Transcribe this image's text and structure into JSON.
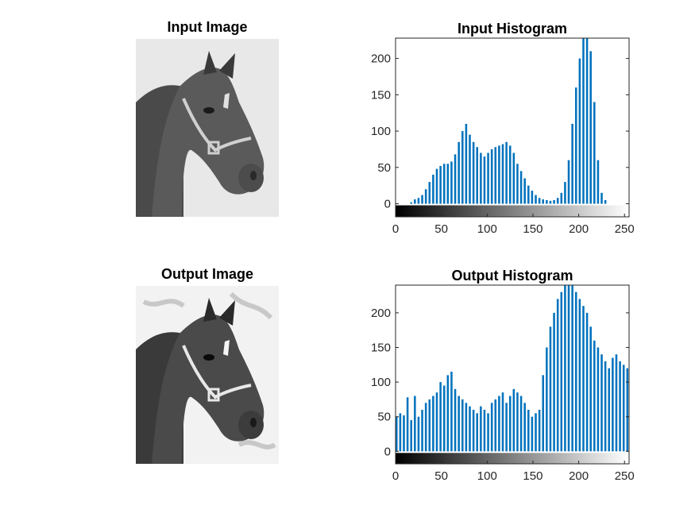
{
  "panels": {
    "input_image_title": "Input Image",
    "output_image_title": "Output Image",
    "input_hist_title": "Input Histogram",
    "output_hist_title": "Output Histogram"
  },
  "colors": {
    "bar": "#0072BD",
    "axis": "#262626"
  },
  "chart_data": [
    {
      "type": "bar",
      "title": "Input Histogram",
      "xlabel": "",
      "ylabel": "",
      "xlim": [
        0,
        255
      ],
      "ylim": [
        -18,
        228
      ],
      "xticks": [
        0,
        50,
        100,
        150,
        200,
        250
      ],
      "yticks": [
        0,
        50,
        100,
        150,
        200
      ],
      "colorbar": "grayscale 0-255",
      "x": [
        0,
        4,
        8,
        12,
        16,
        20,
        24,
        28,
        32,
        36,
        40,
        44,
        48,
        52,
        56,
        60,
        64,
        68,
        72,
        76,
        80,
        84,
        88,
        92,
        96,
        100,
        104,
        108,
        112,
        116,
        120,
        124,
        128,
        132,
        136,
        140,
        144,
        148,
        152,
        156,
        160,
        164,
        168,
        172,
        176,
        180,
        184,
        188,
        192,
        196,
        200,
        204,
        208,
        212,
        216,
        220,
        224,
        228,
        232,
        236,
        240,
        244,
        248,
        252
      ],
      "values": [
        0,
        0,
        0,
        0,
        2,
        6,
        8,
        12,
        20,
        30,
        40,
        48,
        52,
        55,
        55,
        58,
        68,
        85,
        100,
        110,
        95,
        85,
        78,
        70,
        65,
        70,
        75,
        78,
        80,
        82,
        85,
        80,
        70,
        55,
        45,
        35,
        25,
        18,
        12,
        8,
        6,
        5,
        4,
        5,
        8,
        15,
        30,
        60,
        110,
        160,
        200,
        228,
        228,
        210,
        140,
        60,
        15,
        5,
        0,
        0,
        0,
        0,
        0,
        0
      ]
    },
    {
      "type": "bar",
      "title": "Output Histogram",
      "xlabel": "",
      "ylabel": "",
      "xlim": [
        0,
        255
      ],
      "ylim": [
        -18,
        240
      ],
      "xticks": [
        0,
        50,
        100,
        150,
        200,
        250
      ],
      "yticks": [
        0,
        50,
        100,
        150,
        200
      ],
      "colorbar": "grayscale 0-255",
      "x": [
        0,
        4,
        8,
        12,
        16,
        20,
        24,
        28,
        32,
        36,
        40,
        44,
        48,
        52,
        56,
        60,
        64,
        68,
        72,
        76,
        80,
        84,
        88,
        92,
        96,
        100,
        104,
        108,
        112,
        116,
        120,
        124,
        128,
        132,
        136,
        140,
        144,
        148,
        152,
        156,
        160,
        164,
        168,
        172,
        176,
        180,
        184,
        188,
        192,
        196,
        200,
        204,
        208,
        212,
        216,
        220,
        224,
        228,
        232,
        236,
        240,
        244,
        248,
        252
      ],
      "values": [
        50,
        55,
        52,
        78,
        45,
        80,
        50,
        60,
        70,
        75,
        80,
        85,
        100,
        95,
        110,
        115,
        90,
        80,
        75,
        70,
        65,
        60,
        55,
        65,
        60,
        55,
        70,
        75,
        80,
        85,
        70,
        80,
        90,
        85,
        80,
        70,
        60,
        50,
        55,
        60,
        110,
        150,
        180,
        200,
        220,
        230,
        240,
        240,
        240,
        230,
        220,
        210,
        200,
        180,
        160,
        150,
        140,
        130,
        120,
        135,
        140,
        130,
        125,
        120
      ]
    }
  ]
}
